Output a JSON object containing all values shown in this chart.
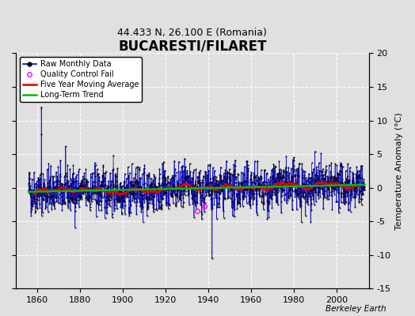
{
  "title": "BUCARESTI/FILARET",
  "subtitle": "44.433 N, 26.100 E (Romania)",
  "ylabel": "Temperature Anomaly (°C)",
  "credit": "Berkeley Earth",
  "ylim": [
    -15,
    20
  ],
  "yticks": [
    -15,
    -10,
    -5,
    0,
    5,
    10,
    15,
    20
  ],
  "xlim": [
    1850,
    2015
  ],
  "xticks": [
    1860,
    1880,
    1900,
    1920,
    1940,
    1960,
    1980,
    2000
  ],
  "start_year": 1856,
  "end_year": 2013,
  "seed": 42,
  "raw_color": "#0000cc",
  "moving_avg_color": "#dd0000",
  "trend_color": "#00bb00",
  "qc_color": "#ff00ff",
  "background_color": "#e0e0e0",
  "grid_color": "#ffffff",
  "title_fontsize": 12,
  "subtitle_fontsize": 9,
  "label_fontsize": 8,
  "tick_fontsize": 8
}
